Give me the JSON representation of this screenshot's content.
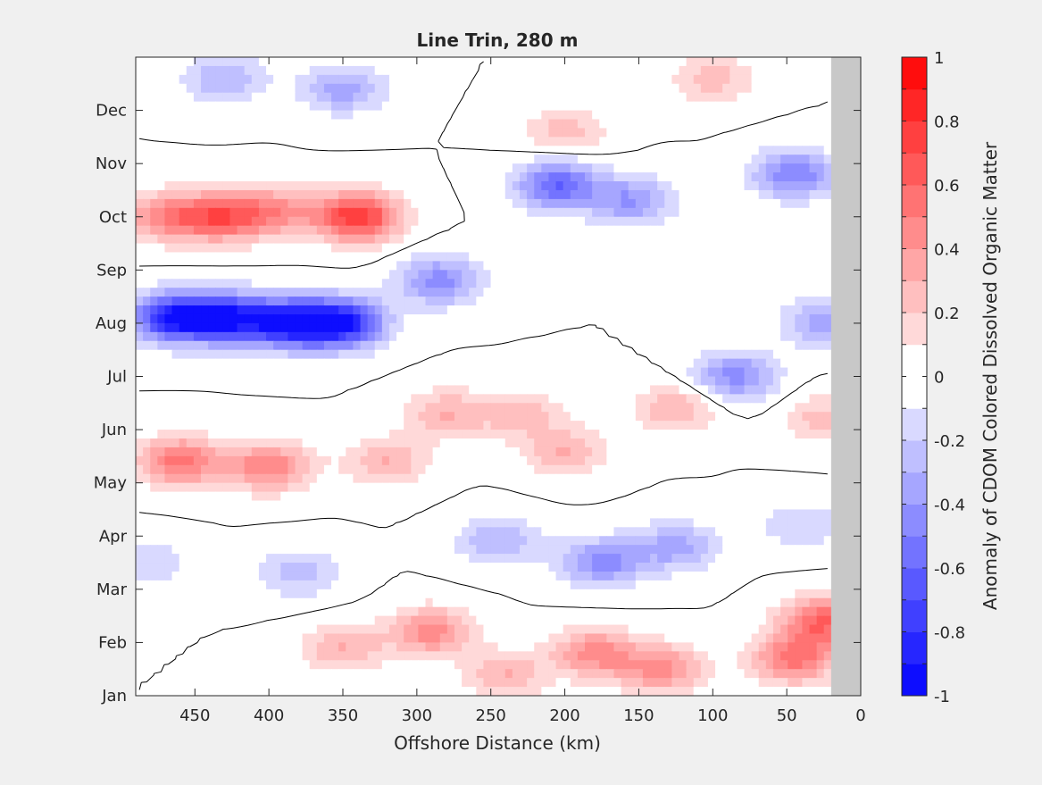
{
  "chart_data": {
    "type": "heatmap",
    "title": "Line Trin, 280 m",
    "xlabel": "Offshore Distance (km)",
    "ylabel": "",
    "xlim": [
      490,
      0
    ],
    "x_ticks": [
      "450",
      "400",
      "350",
      "300",
      "250",
      "200",
      "150",
      "100",
      "50",
      "0"
    ],
    "x_tick_values": [
      450,
      400,
      350,
      300,
      250,
      200,
      150,
      100,
      50,
      0
    ],
    "y_ticks": [
      "Jan",
      "Feb",
      "Mar",
      "Apr",
      "May",
      "Jun",
      "Jul",
      "Aug",
      "Sep",
      "Oct",
      "Nov",
      "Dec"
    ],
    "y_tick_values": [
      1,
      2,
      3,
      4,
      5,
      6,
      7,
      8,
      9,
      10,
      11,
      12
    ],
    "ylim": [
      1,
      13
    ],
    "no_data_region": {
      "x_from": 20,
      "x_to": 0,
      "color": "#c8c8c8"
    },
    "colorbar": {
      "label": "Anomaly of CDOM Colored Dissolved Organic Matter",
      "range": [
        -1,
        1
      ],
      "tick_labels": [
        "1",
        "0.8",
        "0.6",
        "0.4",
        "0.2",
        "0",
        "-0.2",
        "-0.4",
        "-0.6",
        "-0.8",
        "-1"
      ],
      "tick_values": [
        1,
        0.8,
        0.6,
        0.4,
        0.2,
        0,
        -0.2,
        -0.4,
        -0.6,
        -0.8,
        -1
      ],
      "levels": 20,
      "zero_contour": true
    },
    "anomaly_features": [
      {
        "x": 470,
        "y": 10.0,
        "value": 0.45
      },
      {
        "x": 432,
        "y": 10.0,
        "value": 0.6
      },
      {
        "x": 395,
        "y": 10.1,
        "value": 0.4
      },
      {
        "x": 340,
        "y": 10.0,
        "value": 0.8
      },
      {
        "x": 465,
        "y": 8.1,
        "value": -0.85
      },
      {
        "x": 428,
        "y": 8.1,
        "value": -0.85
      },
      {
        "x": 385,
        "y": 8.0,
        "value": -0.9
      },
      {
        "x": 350,
        "y": 8.0,
        "value": -0.85
      },
      {
        "x": 460,
        "y": 5.4,
        "value": 0.55
      },
      {
        "x": 400,
        "y": 5.3,
        "value": 0.5
      },
      {
        "x": 320,
        "y": 5.4,
        "value": 0.3
      },
      {
        "x": 430,
        "y": 12.6,
        "value": -0.3
      },
      {
        "x": 350,
        "y": 12.4,
        "value": -0.35
      },
      {
        "x": 200,
        "y": 11.6,
        "value": 0.25
      },
      {
        "x": 100,
        "y": 12.6,
        "value": 0.25
      },
      {
        "x": 285,
        "y": 8.8,
        "value": -0.45
      },
      {
        "x": 205,
        "y": 10.6,
        "value": -0.6
      },
      {
        "x": 155,
        "y": 10.3,
        "value": -0.4
      },
      {
        "x": 45,
        "y": 10.8,
        "value": -0.5
      },
      {
        "x": 25,
        "y": 8.0,
        "value": -0.35
      },
      {
        "x": 85,
        "y": 7.0,
        "value": -0.45
      },
      {
        "x": 280,
        "y": 6.3,
        "value": 0.3
      },
      {
        "x": 230,
        "y": 6.3,
        "value": 0.25
      },
      {
        "x": 200,
        "y": 5.6,
        "value": 0.3
      },
      {
        "x": 125,
        "y": 6.4,
        "value": 0.3
      },
      {
        "x": 25,
        "y": 6.2,
        "value": 0.25
      },
      {
        "x": 245,
        "y": 3.9,
        "value": -0.3
      },
      {
        "x": 175,
        "y": 3.5,
        "value": -0.45
      },
      {
        "x": 125,
        "y": 3.8,
        "value": -0.35
      },
      {
        "x": 40,
        "y": 4.2,
        "value": -0.2
      },
      {
        "x": 380,
        "y": 3.3,
        "value": -0.25
      },
      {
        "x": 350,
        "y": 1.9,
        "value": 0.3
      },
      {
        "x": 290,
        "y": 2.2,
        "value": 0.45
      },
      {
        "x": 240,
        "y": 1.4,
        "value": 0.3
      },
      {
        "x": 180,
        "y": 1.8,
        "value": 0.45
      },
      {
        "x": 135,
        "y": 1.5,
        "value": 0.45
      },
      {
        "x": 45,
        "y": 1.7,
        "value": 0.55
      },
      {
        "x": 25,
        "y": 2.4,
        "value": 0.6
      },
      {
        "x": 485,
        "y": 3.5,
        "value": -0.2
      }
    ]
  }
}
